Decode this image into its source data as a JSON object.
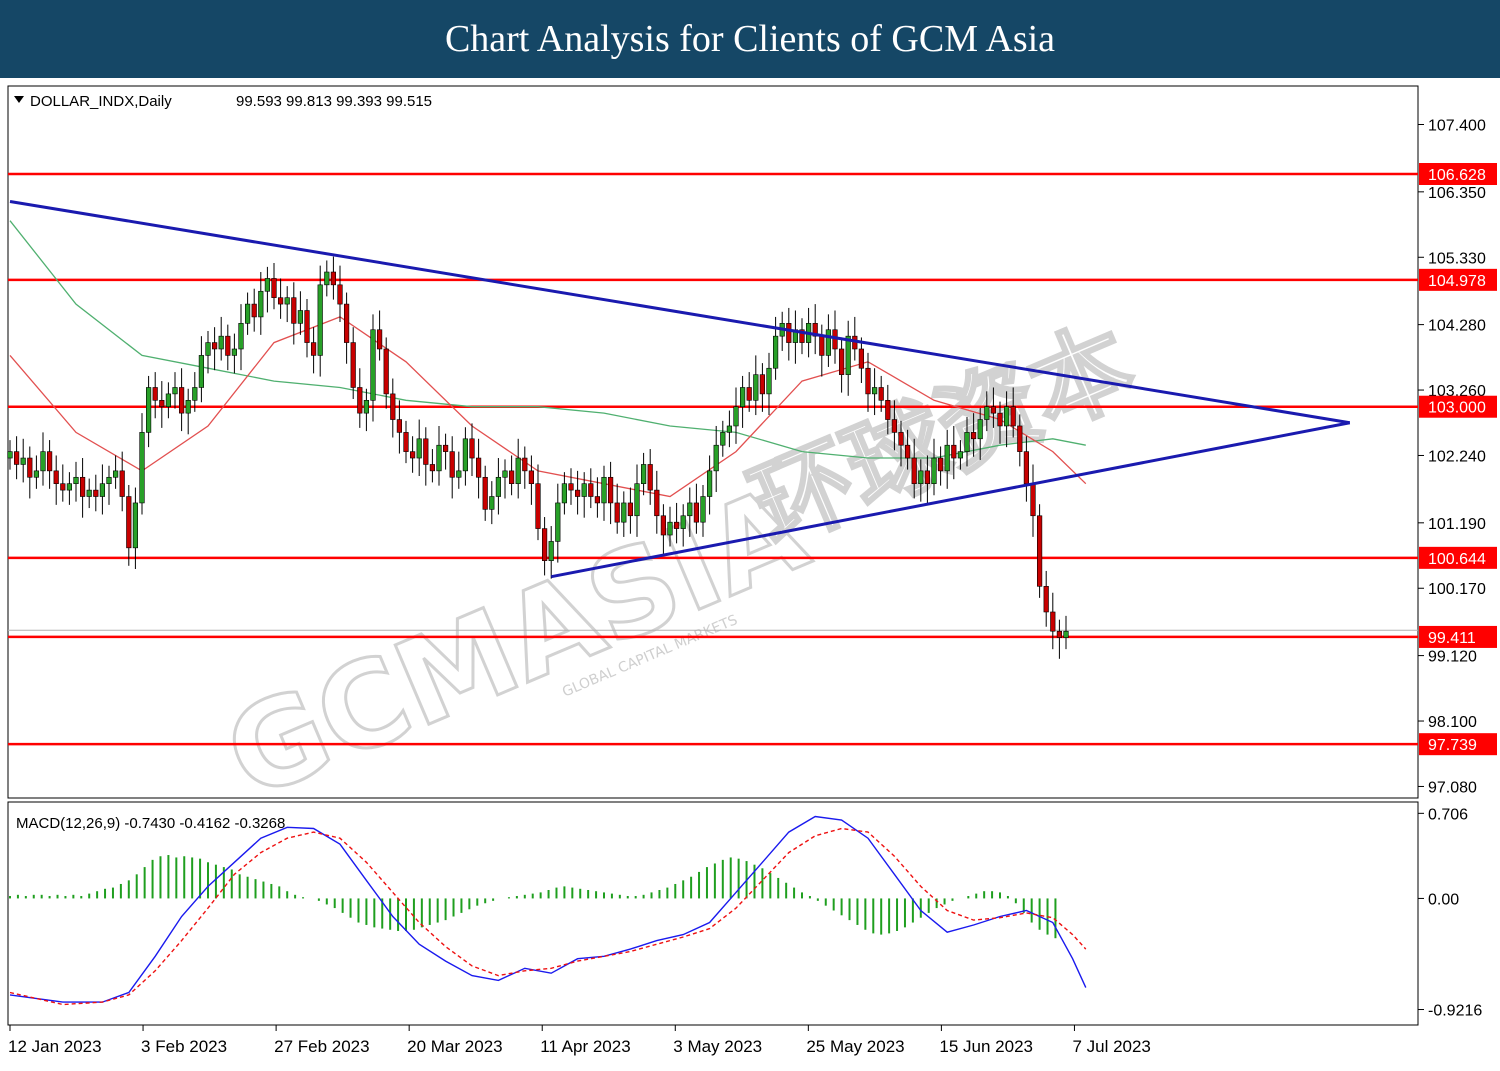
{
  "header": {
    "title": "Chart Analysis for Clients of GCM Asia"
  },
  "watermark": {
    "brand": "GCMASIA",
    "tagline": "GLOBAL CAPITAL MARKETS",
    "chinese": "环球资本"
  },
  "chart_data": {
    "type": "candlestick",
    "symbol_label": "DOLLAR_INDX,Daily",
    "ohlc_label": "99.593 99.813 99.393 99.515",
    "price_axis": {
      "ylim": [
        96.9,
        108.0
      ],
      "ticks": [
        "107.400",
        "106.350",
        "105.330",
        "104.280",
        "103.260",
        "102.240",
        "101.190",
        "100.170",
        "99.120",
        "98.100",
        "97.080"
      ]
    },
    "date_ticks": [
      {
        "label": "12 Jan 2023",
        "index": 0
      },
      {
        "label": "3 Feb 2023",
        "index": 20
      },
      {
        "label": "27 Feb 2023",
        "index": 40
      },
      {
        "label": "20 Mar 2023",
        "index": 60
      },
      {
        "label": "11 Apr 2023",
        "index": 80
      },
      {
        "label": "3 May 2023",
        "index": 100
      },
      {
        "label": "25 May 2023",
        "index": 120
      },
      {
        "label": "15 Jun 2023",
        "index": 140
      },
      {
        "label": "7 Jul 2023",
        "index": 160
      }
    ],
    "levels": [
      {
        "label": "106.628",
        "value": 106.628
      },
      {
        "label": "104.978",
        "value": 104.978
      },
      {
        "label": "103.000",
        "value": 103.0
      },
      {
        "label": "100.644",
        "value": 100.644
      },
      {
        "label": "99.411",
        "value": 99.411
      },
      {
        "label": "97.739",
        "value": 97.739
      }
    ],
    "trendlines": [
      {
        "name": "upper",
        "from": [
          0,
          106.2
        ],
        "to": [
          203,
          102.75
        ]
      },
      {
        "name": "lower",
        "from": [
          82,
          100.35
        ],
        "to": [
          203,
          102.75
        ]
      }
    ],
    "closes": [
      102.3,
      102.1,
      102.2,
      101.9,
      102.0,
      102.3,
      102.0,
      101.8,
      101.7,
      101.8,
      101.9,
      101.6,
      101.7,
      101.6,
      101.8,
      101.9,
      102.0,
      101.6,
      100.8,
      101.5,
      102.6,
      103.3,
      103.1,
      103.0,
      103.2,
      103.3,
      102.9,
      103.1,
      103.3,
      103.8,
      104.0,
      103.9,
      104.1,
      103.8,
      103.9,
      104.3,
      104.6,
      104.4,
      104.8,
      105.0,
      104.7,
      104.6,
      104.7,
      104.3,
      104.5,
      104.0,
      103.8,
      104.9,
      105.1,
      104.9,
      104.6,
      104.0,
      103.3,
      102.9,
      103.1,
      104.2,
      103.9,
      103.2,
      102.8,
      102.6,
      102.3,
      102.2,
      102.5,
      102.1,
      102.0,
      102.4,
      102.3,
      101.9,
      102.0,
      102.5,
      102.2,
      101.9,
      101.4,
      101.6,
      101.9,
      102.0,
      101.8,
      102.2,
      102.0,
      101.8,
      101.1,
      100.6,
      100.9,
      101.5,
      101.8,
      101.7,
      101.6,
      101.8,
      101.6,
      101.5,
      101.9,
      101.5,
      101.2,
      101.5,
      101.3,
      101.8,
      102.1,
      101.7,
      101.3,
      101.0,
      101.2,
      101.1,
      101.3,
      101.5,
      101.2,
      101.6,
      102.0,
      102.4,
      102.6,
      102.7,
      103.0,
      103.3,
      103.1,
      103.5,
      103.2,
      103.6,
      104.1,
      104.3,
      104.0,
      104.2,
      104.0,
      104.3,
      104.1,
      103.8,
      104.2,
      103.9,
      103.5,
      104.1,
      103.9,
      103.6,
      103.2,
      103.3,
      103.1,
      102.8,
      102.6,
      102.4,
      102.2,
      101.8,
      102.0,
      101.8,
      102.2,
      102.0,
      102.4,
      102.2,
      102.3,
      102.6,
      102.5,
      102.8,
      103.0,
      102.9,
      102.7,
      103.0,
      102.7,
      102.3,
      101.8,
      101.3,
      100.2,
      99.8,
      99.5,
      99.4,
      99.5
    ],
    "sma_red": [
      [
        0,
        103.8
      ],
      [
        10,
        102.6
      ],
      [
        20,
        102.0
      ],
      [
        30,
        102.7
      ],
      [
        40,
        104.0
      ],
      [
        50,
        104.4
      ],
      [
        60,
        103.7
      ],
      [
        70,
        102.7
      ],
      [
        80,
        102.0
      ],
      [
        90,
        101.8
      ],
      [
        100,
        101.6
      ],
      [
        110,
        102.3
      ],
      [
        120,
        103.4
      ],
      [
        130,
        103.7
      ],
      [
        140,
        103.1
      ],
      [
        150,
        102.8
      ],
      [
        158,
        102.3
      ],
      [
        163,
        101.8
      ]
    ],
    "sma_green": [
      [
        0,
        105.9
      ],
      [
        10,
        104.6
      ],
      [
        20,
        103.8
      ],
      [
        30,
        103.6
      ],
      [
        40,
        103.4
      ],
      [
        50,
        103.3
      ],
      [
        60,
        103.1
      ],
      [
        70,
        103.0
      ],
      [
        80,
        103.0
      ],
      [
        90,
        102.9
      ],
      [
        100,
        102.7
      ],
      [
        110,
        102.6
      ],
      [
        120,
        102.3
      ],
      [
        130,
        102.2
      ],
      [
        140,
        102.2
      ],
      [
        150,
        102.4
      ],
      [
        158,
        102.5
      ],
      [
        163,
        102.4
      ]
    ],
    "macd": {
      "label": "MACD(12,26,9) -0.7430 -0.4162 -0.3268",
      "ylim": [
        -1.05,
        0.8
      ],
      "ticks": [
        "0.706",
        "0.00",
        "-0.9216"
      ],
      "histogram": [
        0.02,
        0.03,
        0.02,
        0.03,
        0.03,
        0.02,
        0.03,
        0.02,
        0.03,
        0.02,
        0.04,
        0.06,
        0.08,
        0.09,
        0.12,
        0.15,
        0.2,
        0.26,
        0.32,
        0.35,
        0.36,
        0.34,
        0.35,
        0.34,
        0.33,
        0.3,
        0.28,
        0.26,
        0.24,
        0.2,
        0.18,
        0.16,
        0.14,
        0.12,
        0.1,
        0.06,
        0.03,
        0.01,
        0.0,
        -0.02,
        -0.05,
        -0.08,
        -0.12,
        -0.16,
        -0.2,
        -0.22,
        -0.24,
        -0.25,
        -0.26,
        -0.27,
        -0.27,
        -0.26,
        -0.24,
        -0.22,
        -0.2,
        -0.18,
        -0.15,
        -0.12,
        -0.09,
        -0.06,
        -0.04,
        -0.02,
        0.0,
        0.01,
        0.02,
        0.03,
        0.04,
        0.05,
        0.07,
        0.09,
        0.1,
        0.09,
        0.08,
        0.07,
        0.06,
        0.05,
        0.04,
        0.03,
        0.02,
        0.02,
        0.03,
        0.05,
        0.07,
        0.09,
        0.12,
        0.15,
        0.18,
        0.22,
        0.26,
        0.29,
        0.32,
        0.34,
        0.33,
        0.31,
        0.28,
        0.25,
        0.21,
        0.17,
        0.13,
        0.09,
        0.05,
        0.02,
        -0.02,
        -0.06,
        -0.1,
        -0.14,
        -0.18,
        -0.22,
        -0.26,
        -0.29,
        -0.3,
        -0.29,
        -0.27,
        -0.24,
        -0.2,
        -0.16,
        -0.12,
        -0.08,
        -0.05,
        -0.02,
        0.0,
        0.02,
        0.04,
        0.06,
        0.06,
        0.05,
        0.02,
        -0.04,
        -0.12,
        -0.2,
        -0.26,
        -0.3,
        -0.33
      ],
      "macd_line": [
        [
          0,
          -0.8
        ],
        [
          8,
          -0.86
        ],
        [
          14,
          -0.86
        ],
        [
          18,
          -0.78
        ],
        [
          22,
          -0.48
        ],
        [
          26,
          -0.15
        ],
        [
          30,
          0.1
        ],
        [
          34,
          0.3
        ],
        [
          38,
          0.5
        ],
        [
          42,
          0.59
        ],
        [
          46,
          0.58
        ],
        [
          50,
          0.45
        ],
        [
          54,
          0.15
        ],
        [
          58,
          -0.15
        ],
        [
          62,
          -0.38
        ],
        [
          66,
          -0.52
        ],
        [
          70,
          -0.64
        ],
        [
          74,
          -0.68
        ],
        [
          78,
          -0.58
        ],
        [
          82,
          -0.62
        ],
        [
          86,
          -0.5
        ],
        [
          90,
          -0.48
        ],
        [
          94,
          -0.42
        ],
        [
          98,
          -0.35
        ],
        [
          102,
          -0.3
        ],
        [
          106,
          -0.2
        ],
        [
          110,
          0.05
        ],
        [
          114,
          0.3
        ],
        [
          118,
          0.55
        ],
        [
          122,
          0.68
        ],
        [
          126,
          0.65
        ],
        [
          130,
          0.5
        ],
        [
          134,
          0.2
        ],
        [
          138,
          -0.1
        ],
        [
          142,
          -0.28
        ],
        [
          146,
          -0.22
        ],
        [
          150,
          -0.15
        ],
        [
          154,
          -0.1
        ],
        [
          158,
          -0.2
        ],
        [
          161,
          -0.5
        ],
        [
          163,
          -0.74
        ]
      ],
      "signal_line": [
        [
          0,
          -0.78
        ],
        [
          8,
          -0.88
        ],
        [
          14,
          -0.86
        ],
        [
          18,
          -0.8
        ],
        [
          22,
          -0.6
        ],
        [
          26,
          -0.35
        ],
        [
          30,
          -0.08
        ],
        [
          34,
          0.2
        ],
        [
          38,
          0.38
        ],
        [
          42,
          0.5
        ],
        [
          46,
          0.55
        ],
        [
          50,
          0.5
        ],
        [
          54,
          0.3
        ],
        [
          58,
          0.05
        ],
        [
          62,
          -0.2
        ],
        [
          66,
          -0.4
        ],
        [
          70,
          -0.56
        ],
        [
          74,
          -0.64
        ],
        [
          78,
          -0.6
        ],
        [
          82,
          -0.58
        ],
        [
          86,
          -0.52
        ],
        [
          90,
          -0.48
        ],
        [
          94,
          -0.44
        ],
        [
          98,
          -0.38
        ],
        [
          102,
          -0.32
        ],
        [
          106,
          -0.25
        ],
        [
          110,
          -0.08
        ],
        [
          114,
          0.15
        ],
        [
          118,
          0.38
        ],
        [
          122,
          0.52
        ],
        [
          126,
          0.58
        ],
        [
          130,
          0.55
        ],
        [
          134,
          0.35
        ],
        [
          138,
          0.1
        ],
        [
          142,
          -0.1
        ],
        [
          146,
          -0.18
        ],
        [
          150,
          -0.16
        ],
        [
          154,
          -0.12
        ],
        [
          158,
          -0.16
        ],
        [
          161,
          -0.3
        ],
        [
          163,
          -0.42
        ]
      ]
    }
  },
  "colors": {
    "banner": "#154766",
    "bull": "#28a028",
    "bear": "#c80000",
    "level": "#ff0000",
    "trend": "#1a1aaf",
    "sma_red": "#e25050",
    "sma_green": "#50b070",
    "macd_hist": "#1f9f1f",
    "macd_line": "#1a1aee",
    "macd_signal": "#ee1111"
  }
}
